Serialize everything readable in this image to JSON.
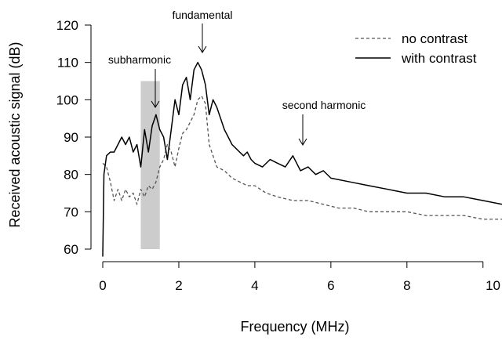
{
  "chart_data": {
    "type": "line",
    "xlabel": "Frequency (MHz)",
    "ylabel": "Received acoustic signal (dB)",
    "xlim": [
      0,
      10.5
    ],
    "ylim": [
      60,
      120
    ],
    "xticks": [
      "0",
      "2",
      "4",
      "6",
      "8",
      "10"
    ],
    "yticks": [
      "60",
      "70",
      "80",
      "90",
      "100",
      "110",
      "120"
    ],
    "grid": false,
    "legend": {
      "position": "top-right",
      "entries": [
        {
          "label": "no contrast",
          "style": "dashed",
          "color": "#555555"
        },
        {
          "label": "with contrast",
          "style": "solid",
          "color": "#000000"
        }
      ]
    },
    "series": [
      {
        "name": "no contrast",
        "style": "dashed",
        "color": "#555555",
        "x": [
          0.0,
          0.1,
          0.2,
          0.3,
          0.4,
          0.5,
          0.6,
          0.7,
          0.8,
          0.9,
          1.0,
          1.1,
          1.2,
          1.3,
          1.4,
          1.5,
          1.6,
          1.7,
          1.8,
          1.9,
          2.0,
          2.1,
          2.2,
          2.3,
          2.4,
          2.5,
          2.6,
          2.7,
          2.8,
          2.9,
          3.0,
          3.2,
          3.4,
          3.6,
          3.8,
          4.0,
          4.3,
          4.6,
          5.0,
          5.4,
          5.8,
          6.2,
          6.6,
          7.0,
          7.5,
          8.0,
          8.5,
          9.0,
          9.5,
          10.0,
          10.5
        ],
        "y": [
          83,
          82,
          78,
          73,
          76,
          73,
          76,
          74,
          75,
          72,
          76,
          74,
          77,
          76,
          78,
          82,
          84,
          88,
          86,
          82,
          87,
          91,
          92,
          94,
          96,
          100,
          101,
          99,
          88,
          85,
          82,
          81,
          79,
          78,
          77,
          77,
          75,
          74,
          73,
          73,
          72,
          71,
          71,
          70,
          70,
          70,
          69,
          69,
          69,
          68,
          68
        ]
      },
      {
        "name": "with contrast",
        "style": "solid",
        "color": "#000000",
        "x": [
          0.0,
          0.03,
          0.1,
          0.2,
          0.3,
          0.4,
          0.5,
          0.6,
          0.7,
          0.8,
          0.9,
          1.0,
          1.1,
          1.2,
          1.3,
          1.4,
          1.5,
          1.6,
          1.7,
          1.8,
          1.9,
          2.0,
          2.1,
          2.2,
          2.3,
          2.4,
          2.5,
          2.6,
          2.7,
          2.8,
          2.9,
          3.0,
          3.1,
          3.2,
          3.3,
          3.4,
          3.5,
          3.6,
          3.7,
          3.8,
          3.9,
          4.0,
          4.2,
          4.4,
          4.6,
          4.8,
          5.0,
          5.2,
          5.4,
          5.6,
          5.8,
          6.0,
          6.5,
          7.0,
          7.5,
          8.0,
          8.5,
          9.0,
          9.5,
          10.0,
          10.5
        ],
        "y": [
          58,
          80,
          85,
          86,
          86,
          88,
          90,
          88,
          90,
          86,
          88,
          82,
          92,
          86,
          93,
          96,
          92,
          90,
          84,
          92,
          100,
          96,
          104,
          106,
          100,
          108,
          110,
          108,
          104,
          96,
          100,
          98,
          95,
          92,
          90,
          88,
          87,
          86,
          85,
          86,
          84,
          83,
          82,
          84,
          83,
          82,
          85,
          81,
          82,
          80,
          81,
          79,
          78,
          77,
          76,
          75,
          75,
          74,
          74,
          73,
          72
        ]
      }
    ],
    "shaded_region": {
      "x": [
        1.0,
        1.5
      ],
      "y": [
        60,
        105
      ],
      "color": "#cccccc"
    },
    "annotations": [
      {
        "text": "fundamental",
        "x": 2.6,
        "y": 110
      },
      {
        "text": "subharmonic",
        "x": 1.4,
        "y": 96
      },
      {
        "text": "second harmonic",
        "x": 5.2,
        "y": 86
      }
    ]
  }
}
